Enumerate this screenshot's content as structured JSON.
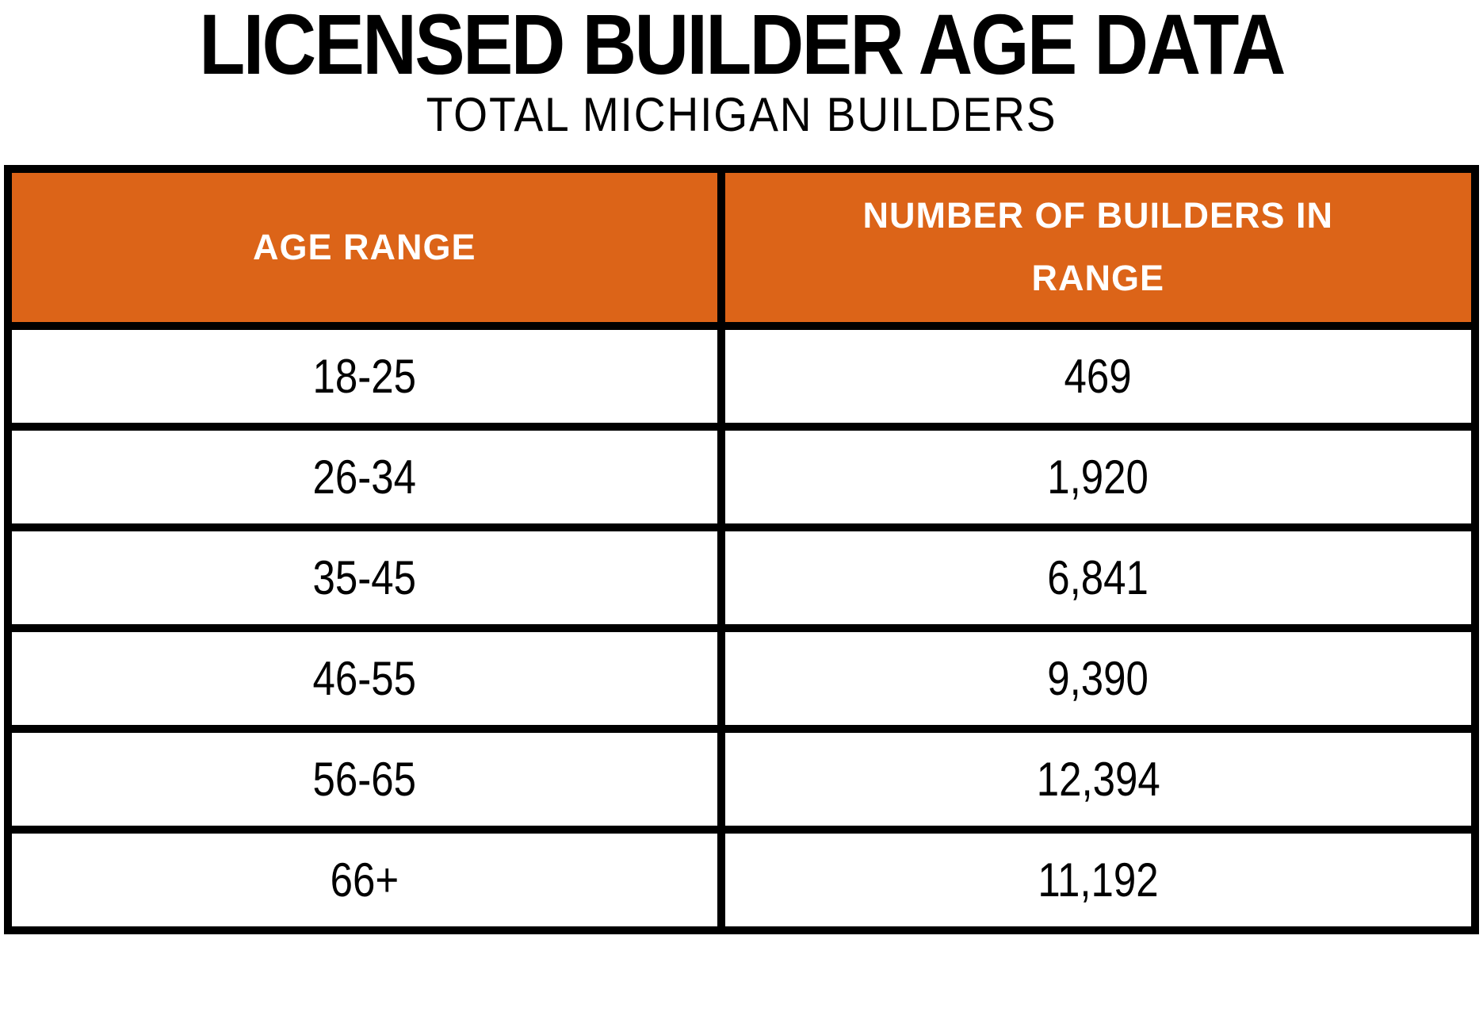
{
  "page": {
    "title": "LICENSED BUILDER AGE DATA",
    "subtitle": "TOTAL MICHIGAN BUILDERS"
  },
  "colors": {
    "header_background": "#dc6418",
    "header_text": "#ffffff",
    "border": "#000000",
    "body_text": "#000000",
    "page_background": "#ffffff"
  },
  "table": {
    "columns": [
      "AGE RANGE",
      "NUMBER OF BUILDERS IN RANGE"
    ],
    "rows": [
      {
        "age_range": "18-25",
        "count": "469"
      },
      {
        "age_range": "26-34",
        "count": "1,920"
      },
      {
        "age_range": "35-45",
        "count": "6,841"
      },
      {
        "age_range": "46-55",
        "count": "9,390"
      },
      {
        "age_range": "56-65",
        "count": "12,394"
      },
      {
        "age_range": "66+",
        "count": "11,192"
      }
    ]
  },
  "chart_data": {
    "type": "table",
    "title": "LICENSED BUILDER AGE DATA",
    "subtitle": "TOTAL MICHIGAN BUILDERS",
    "columns": [
      "AGE RANGE",
      "NUMBER OF BUILDERS IN RANGE"
    ],
    "categories": [
      "18-25",
      "26-34",
      "35-45",
      "46-55",
      "56-65",
      "66+"
    ],
    "values": [
      469,
      1920,
      6841,
      9390,
      12394,
      11192
    ]
  }
}
